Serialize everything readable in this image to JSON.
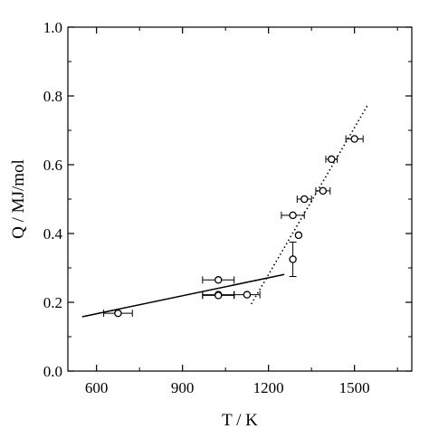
{
  "chart_data": {
    "type": "scatter",
    "xlabel": "T / K",
    "ylabel": "Q / MJ/mol",
    "xlim": [
      500,
      1700
    ],
    "ylim": [
      0.0,
      1.0
    ],
    "xticks": [
      600,
      900,
      1200,
      1500
    ],
    "xtick_labels": [
      "600",
      "900",
      "1200",
      "1500"
    ],
    "yticks": [
      0.0,
      0.2,
      0.4,
      0.6,
      0.8,
      1.0
    ],
    "ytick_labels": [
      "0.0",
      "0.2",
      "0.4",
      "0.6",
      "0.8",
      "1.0"
    ],
    "grid": false,
    "points": [
      {
        "x": 675,
        "y": 0.168,
        "xerr": 50,
        "yerr": 0
      },
      {
        "x": 1025,
        "y": 0.265,
        "xerr": 55,
        "yerr": 0
      },
      {
        "x": 1025,
        "y": 0.222,
        "xerr": 55,
        "yerr": 0
      },
      {
        "x": 1025,
        "y": 0.22,
        "xerr": 55,
        "yerr": 0
      },
      {
        "x": 1125,
        "y": 0.222,
        "xerr": 45,
        "yerr": 0
      },
      {
        "x": 1285,
        "y": 0.325,
        "xerr": 0,
        "yerr": 0.05
      },
      {
        "x": 1285,
        "y": 0.453,
        "xerr": 40,
        "yerr": 0
      },
      {
        "x": 1305,
        "y": 0.395,
        "xerr": 0,
        "yerr": 0
      },
      {
        "x": 1325,
        "y": 0.5,
        "xerr": 25,
        "yerr": 0
      },
      {
        "x": 1390,
        "y": 0.524,
        "xerr": 25,
        "yerr": 0
      },
      {
        "x": 1420,
        "y": 0.616,
        "xerr": 20,
        "yerr": 0
      },
      {
        "x": 1500,
        "y": 0.675,
        "xerr": 30,
        "yerr": 0
      }
    ],
    "fits": [
      {
        "style": "solid",
        "x": [
          550,
          1255
        ],
        "y": [
          0.158,
          0.281
        ]
      },
      {
        "style": "dotted",
        "x": [
          1140,
          1545
        ],
        "y": [
          0.195,
          0.772
        ]
      }
    ]
  }
}
